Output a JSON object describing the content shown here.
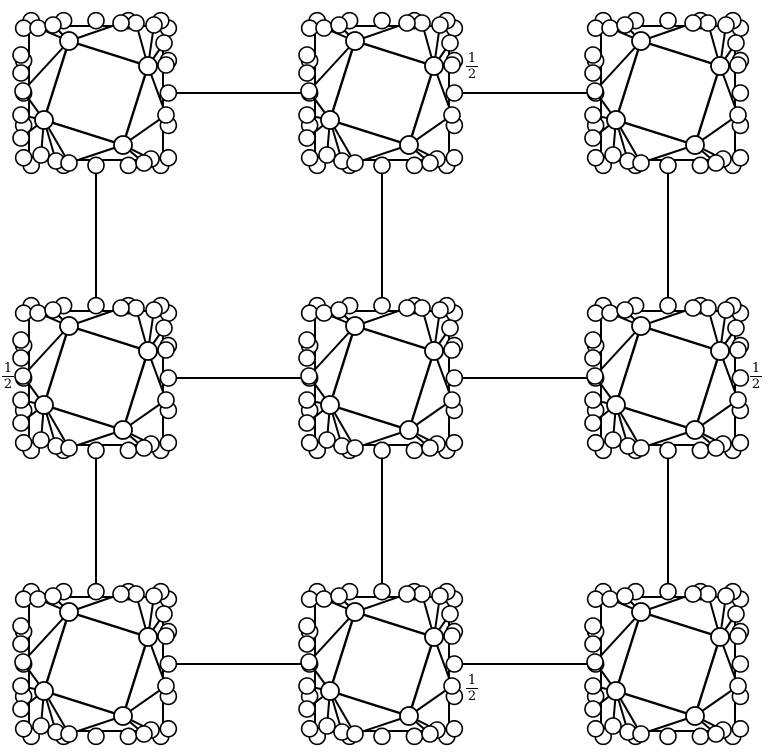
{
  "graph": {
    "rows": 3,
    "cols": 3,
    "stroke_color": "#000000",
    "node_fill": "#ffffff",
    "edge_labels": [
      {
        "id": "label-top-middle",
        "num": "1",
        "den": "2"
      },
      {
        "id": "label-middle-left",
        "num": "1",
        "den": "2"
      },
      {
        "id": "label-middle-right",
        "num": "1",
        "den": "2"
      },
      {
        "id": "label-bottom-middle",
        "num": "1",
        "den": "2"
      }
    ]
  }
}
